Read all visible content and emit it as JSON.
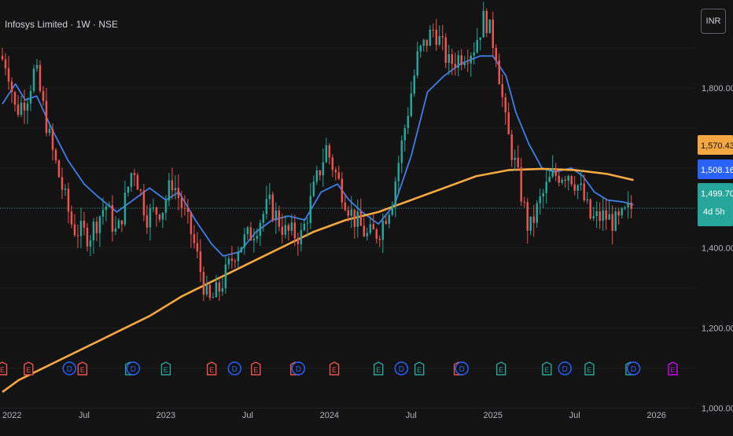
{
  "header": {
    "title": "Infosys Limited · 1W · NSE",
    "currency": "INR"
  },
  "colors": {
    "background": "#131313",
    "up": "#26a69a",
    "down": "#ef5350",
    "sma_fast": "#3d7ee8",
    "sma_slow": "#f5a742",
    "price_line": "#26a69a",
    "earnings": "#ef5350",
    "dividend": "#2962ff",
    "split": "#26a69a",
    "future_event": "#d500f9"
  },
  "price_labels": [
    {
      "text": "1,570.43",
      "value": 1570.43,
      "color": "#f5a742",
      "text_color": "#131313"
    },
    {
      "text": "1,508.16",
      "value": 1508.16,
      "color": "#2962ff",
      "text_color": "#ffffff"
    },
    {
      "text": "1,499.70",
      "value": 1499.7,
      "color": "#26a69a",
      "text_color": "#ffffff",
      "sub": "4d 5h"
    }
  ],
  "chart_data": {
    "type": "candlestick",
    "title": "Infosys Limited · 1W · NSE",
    "yticks": [
      {
        "value": 1000,
        "label": "1,000.00"
      },
      {
        "value": 1200,
        "label": "1,200.00"
      },
      {
        "value": 1400,
        "label": "1,400.00"
      },
      {
        "value": 1800,
        "label": "1,800.00"
      }
    ],
    "ylim": [
      940,
      2020
    ],
    "xlim": [
      2022.0,
      2026.17
    ],
    "xticks": [
      {
        "value": 2022.0,
        "label": "2022"
      },
      {
        "value": 2022.5,
        "label": "Jul"
      },
      {
        "value": 2023.0,
        "label": "2023"
      },
      {
        "value": 2023.5,
        "label": "Jul"
      },
      {
        "value": 2024.0,
        "label": "2024"
      },
      {
        "value": 2024.5,
        "label": "Jul"
      },
      {
        "value": 2025.0,
        "label": "2025"
      },
      {
        "value": 2025.5,
        "label": "Jul"
      },
      {
        "value": 2026.0,
        "label": "2026"
      }
    ],
    "price_anchors": [
      [
        2022.0,
        1880
      ],
      [
        2022.05,
        1860
      ],
      [
        2022.1,
        1740
      ],
      [
        2022.17,
        1780
      ],
      [
        2022.22,
        1850
      ],
      [
        2022.32,
        1650
      ],
      [
        2022.45,
        1450
      ],
      [
        2022.55,
        1430
      ],
      [
        2022.65,
        1510
      ],
      [
        2022.72,
        1430
      ],
      [
        2022.82,
        1610
      ],
      [
        2022.9,
        1480
      ],
      [
        2023.0,
        1500
      ],
      [
        2023.06,
        1570
      ],
      [
        2023.18,
        1430
      ],
      [
        2023.28,
        1260
      ],
      [
        2023.35,
        1300
      ],
      [
        2023.45,
        1400
      ],
      [
        2023.55,
        1440
      ],
      [
        2023.65,
        1510
      ],
      [
        2023.75,
        1440
      ],
      [
        2023.85,
        1430
      ],
      [
        2023.92,
        1540
      ],
      [
        2024.0,
        1650
      ],
      [
        2024.08,
        1560
      ],
      [
        2024.16,
        1480
      ],
      [
        2024.25,
        1430
      ],
      [
        2024.32,
        1440
      ],
      [
        2024.4,
        1520
      ],
      [
        2024.48,
        1700
      ],
      [
        2024.56,
        1880
      ],
      [
        2024.66,
        1950
      ],
      [
        2024.75,
        1860
      ],
      [
        2024.82,
        1880
      ],
      [
        2024.9,
        1900
      ],
      [
        2024.97,
        1980
      ],
      [
        2025.04,
        1890
      ],
      [
        2025.1,
        1700
      ],
      [
        2025.16,
        1600
      ],
      [
        2025.24,
        1440
      ],
      [
        2025.3,
        1510
      ],
      [
        2025.38,
        1580
      ],
      [
        2025.48,
        1590
      ],
      [
        2025.55,
        1550
      ],
      [
        2025.62,
        1470
      ],
      [
        2025.7,
        1480
      ],
      [
        2025.78,
        1460
      ],
      [
        2025.86,
        1500
      ]
    ],
    "series": [
      {
        "name": "SMA fast",
        "color": "#3d7ee8",
        "points": [
          [
            2022.0,
            1760
          ],
          [
            2022.08,
            1810
          ],
          [
            2022.14,
            1770
          ],
          [
            2022.21,
            1780
          ],
          [
            2022.3,
            1700
          ],
          [
            2022.4,
            1620
          ],
          [
            2022.5,
            1560
          ],
          [
            2022.58,
            1530
          ],
          [
            2022.7,
            1490
          ],
          [
            2022.8,
            1520
          ],
          [
            2022.9,
            1550
          ],
          [
            2023.0,
            1520
          ],
          [
            2023.08,
            1540
          ],
          [
            2023.18,
            1470
          ],
          [
            2023.28,
            1410
          ],
          [
            2023.35,
            1380
          ],
          [
            2023.45,
            1390
          ],
          [
            2023.55,
            1440
          ],
          [
            2023.65,
            1470
          ],
          [
            2023.75,
            1480
          ],
          [
            2023.85,
            1470
          ],
          [
            2023.95,
            1540
          ],
          [
            2024.05,
            1560
          ],
          [
            2024.12,
            1520
          ],
          [
            2024.2,
            1490
          ],
          [
            2024.3,
            1460
          ],
          [
            2024.4,
            1510
          ],
          [
            2024.5,
            1630
          ],
          [
            2024.6,
            1790
          ],
          [
            2024.7,
            1830
          ],
          [
            2024.8,
            1860
          ],
          [
            2024.92,
            1880
          ],
          [
            2025.0,
            1880
          ],
          [
            2025.08,
            1830
          ],
          [
            2025.14,
            1740
          ],
          [
            2025.22,
            1660
          ],
          [
            2025.3,
            1600
          ],
          [
            2025.38,
            1590
          ],
          [
            2025.48,
            1600
          ],
          [
            2025.55,
            1580
          ],
          [
            2025.62,
            1540
          ],
          [
            2025.7,
            1520
          ],
          [
            2025.8,
            1515
          ],
          [
            2025.86,
            1508
          ]
        ]
      },
      {
        "name": "SMA slow",
        "color": "#f5a742",
        "points": [
          [
            2022.0,
            1040
          ],
          [
            2022.1,
            1070
          ],
          [
            2022.3,
            1110
          ],
          [
            2022.5,
            1150
          ],
          [
            2022.7,
            1190
          ],
          [
            2022.9,
            1230
          ],
          [
            2023.1,
            1280
          ],
          [
            2023.3,
            1320
          ],
          [
            2023.5,
            1360
          ],
          [
            2023.7,
            1400
          ],
          [
            2023.9,
            1440
          ],
          [
            2024.1,
            1470
          ],
          [
            2024.3,
            1490
          ],
          [
            2024.5,
            1520
          ],
          [
            2024.7,
            1550
          ],
          [
            2024.9,
            1580
          ],
          [
            2025.1,
            1595
          ],
          [
            2025.3,
            1598
          ],
          [
            2025.5,
            1595
          ],
          [
            2025.7,
            1585
          ],
          [
            2025.86,
            1570
          ]
        ]
      }
    ],
    "events": [
      {
        "x": 2022.0,
        "label": "E",
        "kind": "earnings"
      },
      {
        "x": 2022.16,
        "label": "E",
        "kind": "earnings"
      },
      {
        "x": 2022.41,
        "label": "D",
        "kind": "dividend"
      },
      {
        "x": 2022.49,
        "label": "E",
        "kind": "earnings"
      },
      {
        "x": 2022.78,
        "label": "E",
        "kind": "split"
      },
      {
        "x": 2022.8,
        "label": "D",
        "kind": "dividend"
      },
      {
        "x": 2023.0,
        "label": "E",
        "kind": "split"
      },
      {
        "x": 2023.28,
        "label": "E",
        "kind": "earnings"
      },
      {
        "x": 2023.42,
        "label": "D",
        "kind": "dividend"
      },
      {
        "x": 2023.55,
        "label": "E",
        "kind": "earnings"
      },
      {
        "x": 2023.79,
        "label": "E",
        "kind": "earnings"
      },
      {
        "x": 2023.81,
        "label": "D",
        "kind": "dividend"
      },
      {
        "x": 2024.03,
        "label": "E",
        "kind": "earnings"
      },
      {
        "x": 2024.3,
        "label": "E",
        "kind": "split"
      },
      {
        "x": 2024.44,
        "label": "D",
        "kind": "dividend"
      },
      {
        "x": 2024.55,
        "label": "E",
        "kind": "split"
      },
      {
        "x": 2024.79,
        "label": "E",
        "kind": "earnings"
      },
      {
        "x": 2024.81,
        "label": "D",
        "kind": "dividend"
      },
      {
        "x": 2025.05,
        "label": "E",
        "kind": "split"
      },
      {
        "x": 2025.33,
        "label": "E",
        "kind": "split"
      },
      {
        "x": 2025.44,
        "label": "D",
        "kind": "dividend"
      },
      {
        "x": 2025.59,
        "label": "E",
        "kind": "split"
      },
      {
        "x": 2025.84,
        "label": "E",
        "kind": "split"
      },
      {
        "x": 2025.86,
        "label": "D",
        "kind": "dividend"
      },
      {
        "x": 2026.1,
        "label": "E",
        "kind": "future"
      }
    ]
  }
}
